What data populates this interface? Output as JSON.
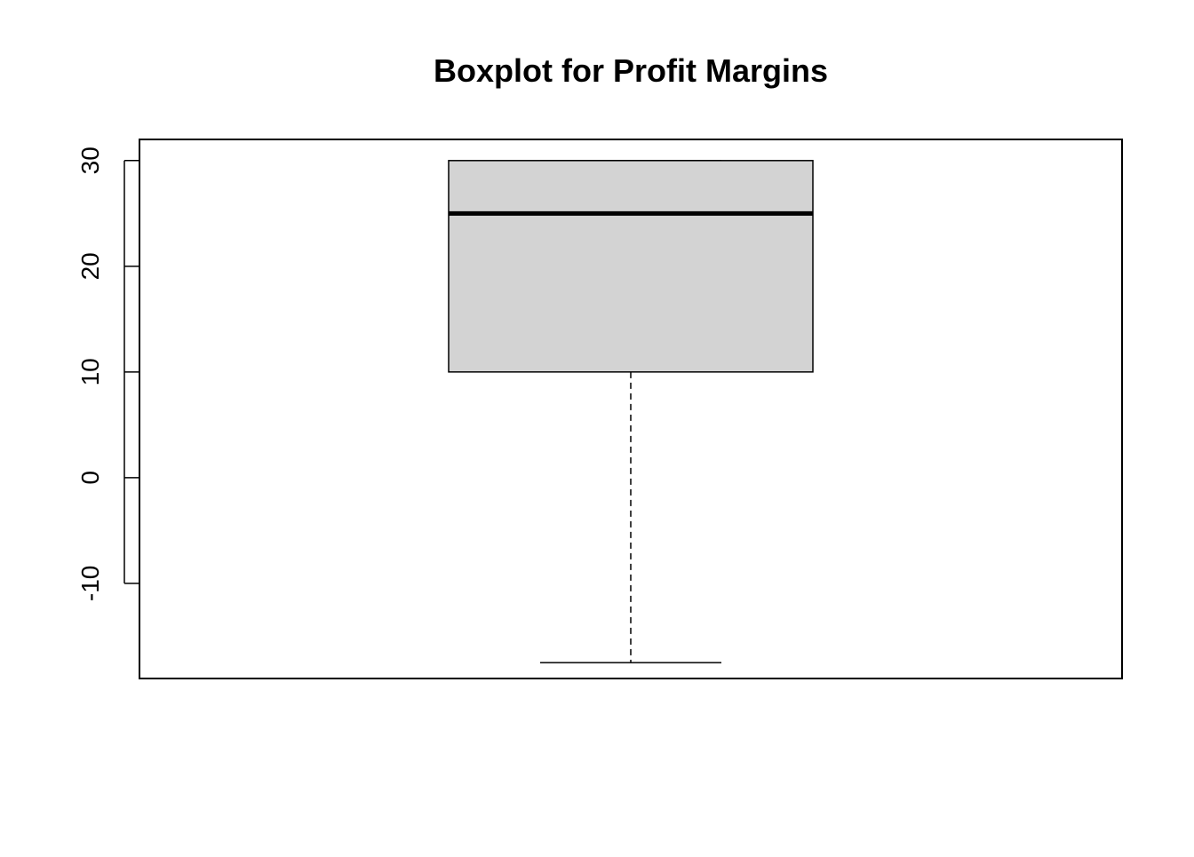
{
  "chart_data": {
    "type": "box",
    "title": "Boxplot for Profit Margins",
    "xlabel": "",
    "ylabel": "",
    "ylim": [
      -19,
      32
    ],
    "yticks": [
      -10,
      0,
      10,
      20,
      30
    ],
    "ytick_labels": [
      "-10",
      "0",
      "10",
      "20",
      "30"
    ],
    "box": {
      "whisker_low": -17.5,
      "q1": 10,
      "median": 25,
      "q3": 30,
      "whisker_high": 30
    },
    "grid": false,
    "colors": {
      "box_fill": "#d3d3d3",
      "stroke": "#000000"
    }
  }
}
